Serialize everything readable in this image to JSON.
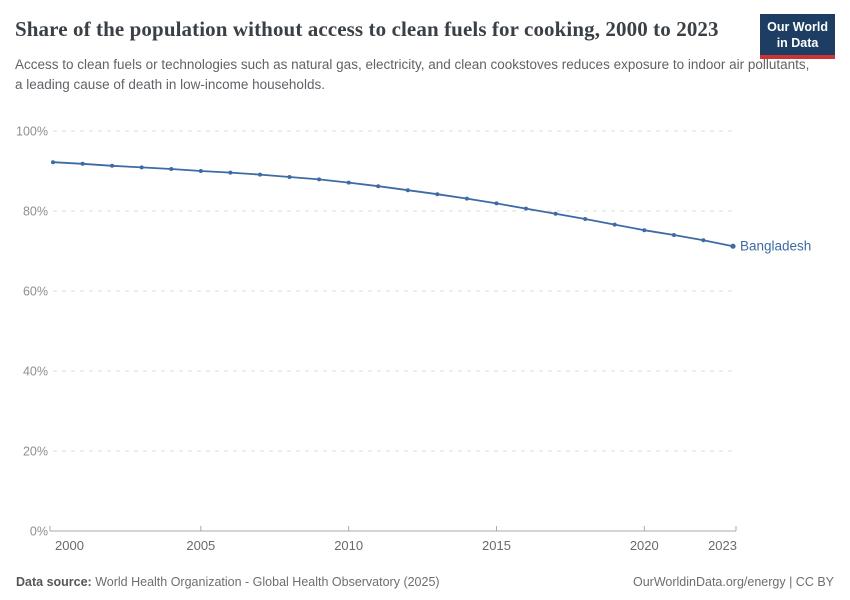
{
  "header": {
    "title": "Share of the population without access to clean fuels for cooking, 2000 to 2023",
    "subtitle": "Access to clean fuels or technologies such as natural gas, electricity, and clean cookstoves reduces exposure to indoor air pollutants, a leading cause of death in low-income households.",
    "logo": {
      "line1": "Our World",
      "line2": "in Data",
      "bg_color": "#1d3d63",
      "bar_color": "#cc3333"
    }
  },
  "chart_data": {
    "type": "line",
    "title": "Share of the population without access to clean fuels for cooking, 2000 to 2023",
    "x": [
      2000,
      2001,
      2002,
      2003,
      2004,
      2005,
      2006,
      2007,
      2008,
      2009,
      2010,
      2011,
      2012,
      2013,
      2014,
      2015,
      2016,
      2017,
      2018,
      2019,
      2020,
      2021,
      2022,
      2023
    ],
    "series": [
      {
        "name": "Bangladesh",
        "color": "#3d6ba3",
        "values": [
          92.2,
          91.8,
          91.3,
          90.9,
          90.5,
          90.0,
          89.6,
          89.1,
          88.5,
          87.9,
          87.1,
          86.2,
          85.2,
          84.2,
          83.1,
          81.9,
          80.6,
          79.3,
          78.0,
          76.6,
          75.2,
          74.0,
          72.7,
          71.2
        ]
      }
    ],
    "xlim": [
      2000,
      2023
    ],
    "ylim": [
      0,
      100
    ],
    "xticks": [
      2000,
      2005,
      2010,
      2015,
      2020,
      2023
    ],
    "yticks": [
      0,
      20,
      40,
      60,
      80,
      100
    ],
    "ytick_suffix": "%",
    "grid": "horizontal-dashed",
    "legend_position": "end-of-line-label",
    "xlabel": "",
    "ylabel": ""
  },
  "footer": {
    "source_label": "Data source:",
    "source_text": " World Health Organization - Global Health Observatory (2025)",
    "right_text": "OurWorldinData.org/energy | CC BY"
  }
}
